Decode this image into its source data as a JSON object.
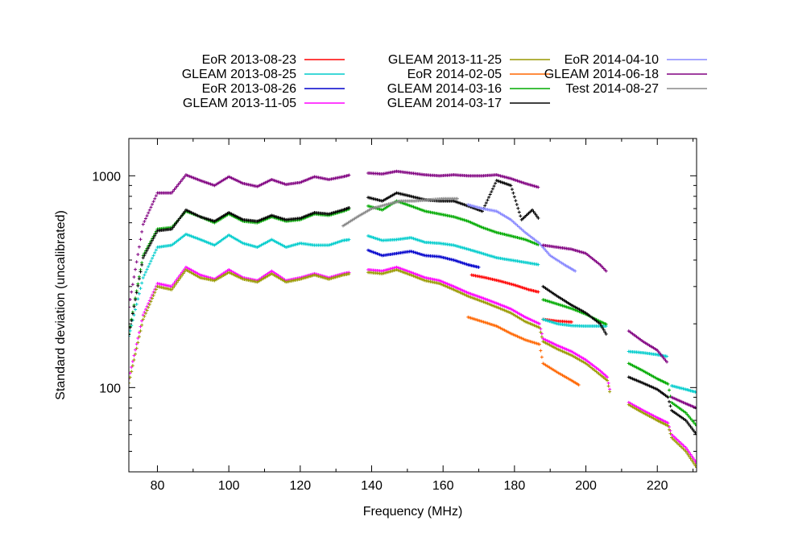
{
  "chart_data": {
    "type": "scatter",
    "xlabel": "Frequency (MHz)",
    "ylabel": "Standard deviation (uncalibrated)",
    "xlim": [
      72,
      231
    ],
    "ylim": [
      40,
      1500
    ],
    "y_scale": "log",
    "x_ticks": [
      80,
      100,
      120,
      140,
      160,
      180,
      200,
      220
    ],
    "y_ticks": [
      100,
      1000
    ],
    "legend_position": "top, above plot, 3 columns",
    "series": [
      {
        "name": "EoR 2013-08-23",
        "color": "#ff0000",
        "points": [
          [
            168,
            340
          ],
          [
            172,
            330
          ],
          [
            176,
            318
          ],
          [
            180,
            305
          ],
          [
            184,
            290
          ],
          [
            187,
            282
          ],
          [
            188,
            210
          ],
          [
            192,
            206
          ],
          [
            196,
            204
          ]
        ]
      },
      {
        "name": "GLEAM 2013-08-25",
        "color": "#00cccc",
        "points": [
          [
            72,
            175
          ],
          [
            76,
            330
          ],
          [
            80,
            460
          ],
          [
            84,
            470
          ],
          [
            88,
            530
          ],
          [
            92,
            500
          ],
          [
            96,
            470
          ],
          [
            100,
            525
          ],
          [
            104,
            480
          ],
          [
            108,
            460
          ],
          [
            112,
            500
          ],
          [
            116,
            460
          ],
          [
            120,
            480
          ],
          [
            124,
            470
          ],
          [
            128,
            470
          ],
          [
            132,
            495
          ],
          [
            134,
            500
          ],
          [
            139,
            520
          ],
          [
            143,
            495
          ],
          [
            147,
            500
          ],
          [
            151,
            510
          ],
          [
            155,
            485
          ],
          [
            159,
            480
          ],
          [
            163,
            470
          ],
          [
            167,
            450
          ],
          [
            171,
            430
          ],
          [
            175,
            410
          ],
          [
            179,
            400
          ],
          [
            183,
            390
          ],
          [
            187,
            380
          ],
          [
            188,
            210
          ],
          [
            192,
            200
          ],
          [
            196,
            196
          ],
          [
            200,
            195
          ],
          [
            204,
            195
          ],
          [
            206,
            195
          ],
          [
            207,
            142
          ],
          [
            212,
            148
          ],
          [
            216,
            146
          ],
          [
            220,
            143
          ],
          [
            223,
            140
          ],
          [
            224,
            102
          ],
          [
            228,
            98
          ],
          [
            231,
            95
          ]
        ]
      },
      {
        "name": "EoR 2013-08-26",
        "color": "#0000cc",
        "points": [
          [
            139,
            445
          ],
          [
            143,
            420
          ],
          [
            147,
            430
          ],
          [
            151,
            440
          ],
          [
            155,
            420
          ],
          [
            159,
            415
          ],
          [
            163,
            400
          ],
          [
            167,
            380
          ],
          [
            170,
            370
          ]
        ]
      },
      {
        "name": "GLEAM 2013-11-05",
        "color": "#ff00ff",
        "points": [
          [
            72,
            110
          ],
          [
            76,
            220
          ],
          [
            80,
            310
          ],
          [
            84,
            300
          ],
          [
            88,
            370
          ],
          [
            92,
            340
          ],
          [
            96,
            325
          ],
          [
            100,
            360
          ],
          [
            104,
            330
          ],
          [
            108,
            320
          ],
          [
            112,
            355
          ],
          [
            116,
            320
          ],
          [
            120,
            330
          ],
          [
            124,
            345
          ],
          [
            128,
            330
          ],
          [
            132,
            345
          ],
          [
            134,
            350
          ],
          [
            139,
            360
          ],
          [
            143,
            355
          ],
          [
            147,
            370
          ],
          [
            151,
            350
          ],
          [
            155,
            330
          ],
          [
            159,
            320
          ],
          [
            163,
            300
          ],
          [
            167,
            280
          ],
          [
            171,
            265
          ],
          [
            175,
            250
          ],
          [
            179,
            235
          ],
          [
            183,
            215
          ],
          [
            187,
            200
          ],
          [
            188,
            170
          ],
          [
            192,
            158
          ],
          [
            196,
            148
          ],
          [
            200,
            135
          ],
          [
            204,
            120
          ],
          [
            206,
            112
          ],
          [
            207,
            92
          ],
          [
            212,
            85
          ],
          [
            216,
            78
          ],
          [
            220,
            72
          ],
          [
            223,
            68
          ],
          [
            224,
            60
          ],
          [
            228,
            52
          ],
          [
            231,
            44
          ]
        ]
      },
      {
        "name": "GLEAM 2013-11-25",
        "color": "#999900",
        "points": [
          [
            72,
            105
          ],
          [
            76,
            210
          ],
          [
            80,
            300
          ],
          [
            84,
            290
          ],
          [
            88,
            360
          ],
          [
            92,
            330
          ],
          [
            96,
            320
          ],
          [
            100,
            350
          ],
          [
            104,
            325
          ],
          [
            108,
            315
          ],
          [
            112,
            345
          ],
          [
            116,
            315
          ],
          [
            120,
            325
          ],
          [
            124,
            340
          ],
          [
            128,
            325
          ],
          [
            132,
            340
          ],
          [
            134,
            345
          ],
          [
            139,
            350
          ],
          [
            143,
            345
          ],
          [
            147,
            360
          ],
          [
            151,
            340
          ],
          [
            155,
            320
          ],
          [
            159,
            310
          ],
          [
            163,
            290
          ],
          [
            167,
            270
          ],
          [
            171,
            255
          ],
          [
            175,
            240
          ],
          [
            179,
            225
          ],
          [
            183,
            205
          ],
          [
            187,
            192
          ],
          [
            188,
            165
          ],
          [
            192,
            152
          ],
          [
            196,
            142
          ],
          [
            200,
            130
          ],
          [
            204,
            115
          ],
          [
            206,
            108
          ],
          [
            207,
            90
          ],
          [
            212,
            83
          ],
          [
            216,
            76
          ],
          [
            220,
            70
          ],
          [
            223,
            66
          ],
          [
            224,
            58
          ],
          [
            228,
            50
          ],
          [
            231,
            42
          ]
        ]
      },
      {
        "name": "EoR 2014-02-05",
        "color": "#ff6600",
        "points": [
          [
            167,
            215
          ],
          [
            171,
            205
          ],
          [
            175,
            195
          ],
          [
            179,
            180
          ],
          [
            183,
            168
          ],
          [
            187,
            160
          ],
          [
            188,
            130
          ],
          [
            192,
            118
          ],
          [
            196,
            108
          ],
          [
            198,
            103
          ]
        ]
      },
      {
        "name": "GLEAM 2014-03-16",
        "color": "#00aa00",
        "points": [
          [
            72,
            180
          ],
          [
            76,
            420
          ],
          [
            80,
            560
          ],
          [
            84,
            570
          ],
          [
            88,
            680
          ],
          [
            92,
            640
          ],
          [
            96,
            600
          ],
          [
            100,
            660
          ],
          [
            104,
            610
          ],
          [
            108,
            600
          ],
          [
            112,
            640
          ],
          [
            116,
            610
          ],
          [
            120,
            620
          ],
          [
            124,
            660
          ],
          [
            128,
            650
          ],
          [
            132,
            680
          ],
          [
            134,
            700
          ],
          [
            139,
            720
          ],
          [
            143,
            690
          ],
          [
            147,
            760
          ],
          [
            151,
            720
          ],
          [
            155,
            680
          ],
          [
            159,
            660
          ],
          [
            163,
            640
          ],
          [
            167,
            610
          ],
          [
            171,
            570
          ],
          [
            175,
            540
          ],
          [
            179,
            520
          ],
          [
            183,
            500
          ],
          [
            187,
            470
          ],
          [
            188,
            260
          ],
          [
            192,
            248
          ],
          [
            196,
            236
          ],
          [
            200,
            222
          ],
          [
            204,
            205
          ],
          [
            206,
            198
          ],
          [
            207,
            138
          ],
          [
            212,
            130
          ],
          [
            216,
            120
          ],
          [
            220,
            110
          ],
          [
            223,
            104
          ],
          [
            224,
            85
          ],
          [
            228,
            76
          ],
          [
            231,
            66
          ]
        ]
      },
      {
        "name": "GLEAM 2014-03-17",
        "color": "#000000",
        "points": [
          [
            72,
            178
          ],
          [
            76,
            410
          ],
          [
            80,
            550
          ],
          [
            84,
            560
          ],
          [
            88,
            690
          ],
          [
            92,
            640
          ],
          [
            96,
            610
          ],
          [
            100,
            670
          ],
          [
            104,
            620
          ],
          [
            108,
            610
          ],
          [
            112,
            650
          ],
          [
            116,
            620
          ],
          [
            120,
            630
          ],
          [
            124,
            670
          ],
          [
            128,
            660
          ],
          [
            132,
            690
          ],
          [
            134,
            710
          ],
          [
            139,
            790
          ],
          [
            143,
            760
          ],
          [
            147,
            830
          ],
          [
            151,
            800
          ],
          [
            155,
            770
          ],
          [
            159,
            760
          ],
          [
            163,
            760
          ],
          [
            167,
            720
          ],
          [
            171,
            680
          ],
          [
            175,
            950
          ],
          [
            179,
            900
          ],
          [
            182,
            620
          ],
          [
            185,
            690
          ],
          [
            187,
            620
          ],
          [
            188,
            300
          ],
          [
            192,
            270
          ],
          [
            196,
            245
          ],
          [
            200,
            225
          ],
          [
            204,
            200
          ],
          [
            206,
            175
          ],
          [
            207,
            120
          ],
          [
            212,
            112
          ],
          [
            216,
            105
          ],
          [
            220,
            98
          ],
          [
            223,
            90
          ],
          [
            224,
            78
          ],
          [
            228,
            70
          ],
          [
            231,
            60
          ]
        ]
      },
      {
        "name": "EoR 2014-04-10",
        "color": "#8888ff",
        "points": [
          [
            167,
            730
          ],
          [
            171,
            700
          ],
          [
            175,
            680
          ],
          [
            179,
            620
          ],
          [
            183,
            540
          ],
          [
            187,
            480
          ],
          [
            190,
            420
          ],
          [
            194,
            380
          ],
          [
            197,
            355
          ]
        ]
      },
      {
        "name": "GLEAM 2014-06-18",
        "color": "#800080",
        "points": [
          [
            72,
            240
          ],
          [
            76,
            590
          ],
          [
            80,
            830
          ],
          [
            84,
            830
          ],
          [
            88,
            1010
          ],
          [
            92,
            950
          ],
          [
            96,
            900
          ],
          [
            100,
            990
          ],
          [
            104,
            920
          ],
          [
            108,
            890
          ],
          [
            112,
            960
          ],
          [
            116,
            910
          ],
          [
            120,
            930
          ],
          [
            124,
            990
          ],
          [
            128,
            960
          ],
          [
            132,
            990
          ],
          [
            134,
            1010
          ],
          [
            139,
            1030
          ],
          [
            143,
            1020
          ],
          [
            147,
            1050
          ],
          [
            151,
            1030
          ],
          [
            155,
            1010
          ],
          [
            159,
            1000
          ],
          [
            163,
            1010
          ],
          [
            167,
            1000
          ],
          [
            171,
            1000
          ],
          [
            175,
            1010
          ],
          [
            179,
            970
          ],
          [
            183,
            920
          ],
          [
            187,
            880
          ],
          [
            188,
            470
          ],
          [
            192,
            460
          ],
          [
            196,
            450
          ],
          [
            200,
            430
          ],
          [
            204,
            380
          ],
          [
            206,
            350
          ],
          [
            207,
            210
          ],
          [
            212,
            185
          ],
          [
            216,
            165
          ],
          [
            220,
            150
          ],
          [
            223,
            130
          ],
          [
            224,
            90
          ],
          [
            228,
            84
          ],
          [
            231,
            80
          ]
        ]
      },
      {
        "name": "Test 2014-08-27",
        "color": "#888888",
        "points": [
          [
            132,
            580
          ],
          [
            136,
            640
          ],
          [
            140,
            700
          ],
          [
            144,
            730
          ],
          [
            148,
            760
          ],
          [
            152,
            760
          ],
          [
            156,
            770
          ],
          [
            160,
            780
          ],
          [
            164,
            780
          ]
        ]
      }
    ]
  }
}
